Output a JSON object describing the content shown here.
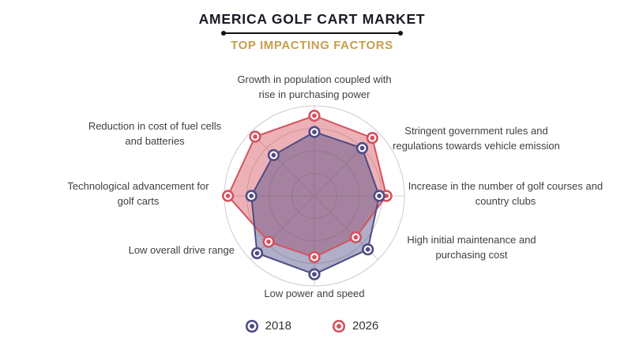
{
  "chart_data": {
    "type": "radar",
    "title": "AMERICA GOLF CART MARKET",
    "subtitle": "TOP IMPACTING FACTORS",
    "categories": [
      "Growth in population coupled with rise in purchasing power",
      "Stringent government rules and regulations towards vehicle emission",
      "Increase in the number of golf courses and country clubs",
      "High initial maintenance and purchasing cost",
      "Low power and speed",
      "Low overall drive range",
      "Technological advancement for golf carts",
      "Reduction in cost of fuel cells and batteries"
    ],
    "series": [
      {
        "name": "2018",
        "color": "#4f4c85",
        "fill_alpha": 0.45,
        "values": [
          71,
          75,
          72,
          84,
          87,
          90,
          70,
          64
        ]
      },
      {
        "name": "2026",
        "color": "#d5525f",
        "fill_alpha": 0.45,
        "values": [
          89,
          91,
          80,
          65,
          68,
          72,
          96,
          93
        ]
      }
    ],
    "max": 100,
    "rings": 4,
    "grid_color": "#cccccc",
    "legend_position": "bottom",
    "start_angle_deg": -90,
    "direction": "clockwise"
  },
  "colors": {
    "title": "#1a1a24",
    "subtitle_gold": "#c5a04c",
    "label_text": "#3f3f3f"
  }
}
